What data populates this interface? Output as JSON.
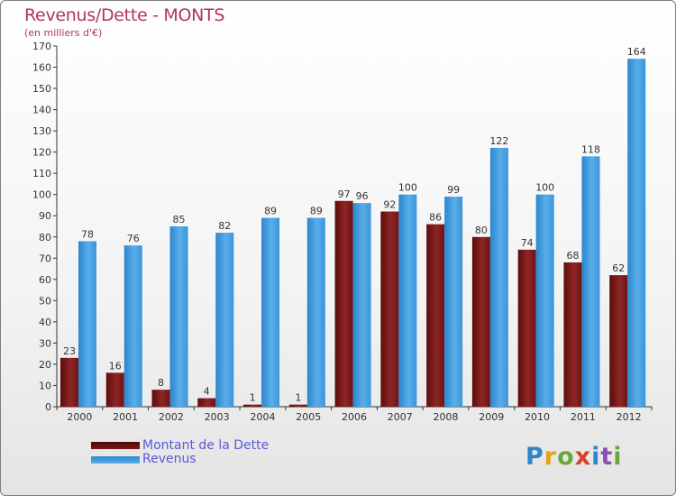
{
  "chart_data": {
    "type": "bar",
    "title": "Revenus/Dette - MONTS",
    "subtitle": "(en milliers d'€)",
    "categories": [
      "2000",
      "2001",
      "2002",
      "2003",
      "2004",
      "2005",
      "2006",
      "2007",
      "2008",
      "2009",
      "2010",
      "2011",
      "2012"
    ],
    "series": [
      {
        "name": "Montant de la Dette",
        "color": "#7a1818",
        "values": [
          23,
          16,
          8,
          4,
          1,
          1,
          97,
          92,
          86,
          80,
          74,
          68,
          62
        ]
      },
      {
        "name": "Revenus",
        "color": "#3f9be0",
        "values": [
          78,
          76,
          85,
          82,
          89,
          89,
          96,
          100,
          99,
          122,
          100,
          118,
          164
        ]
      }
    ],
    "ylim": [
      0,
      170
    ],
    "yticks": [
      0,
      10,
      20,
      30,
      40,
      50,
      60,
      70,
      80,
      90,
      100,
      110,
      120,
      130,
      140,
      150,
      160,
      170
    ],
    "grid": false,
    "legend_position": "bottom-left"
  },
  "logo_text": "Proxiti"
}
